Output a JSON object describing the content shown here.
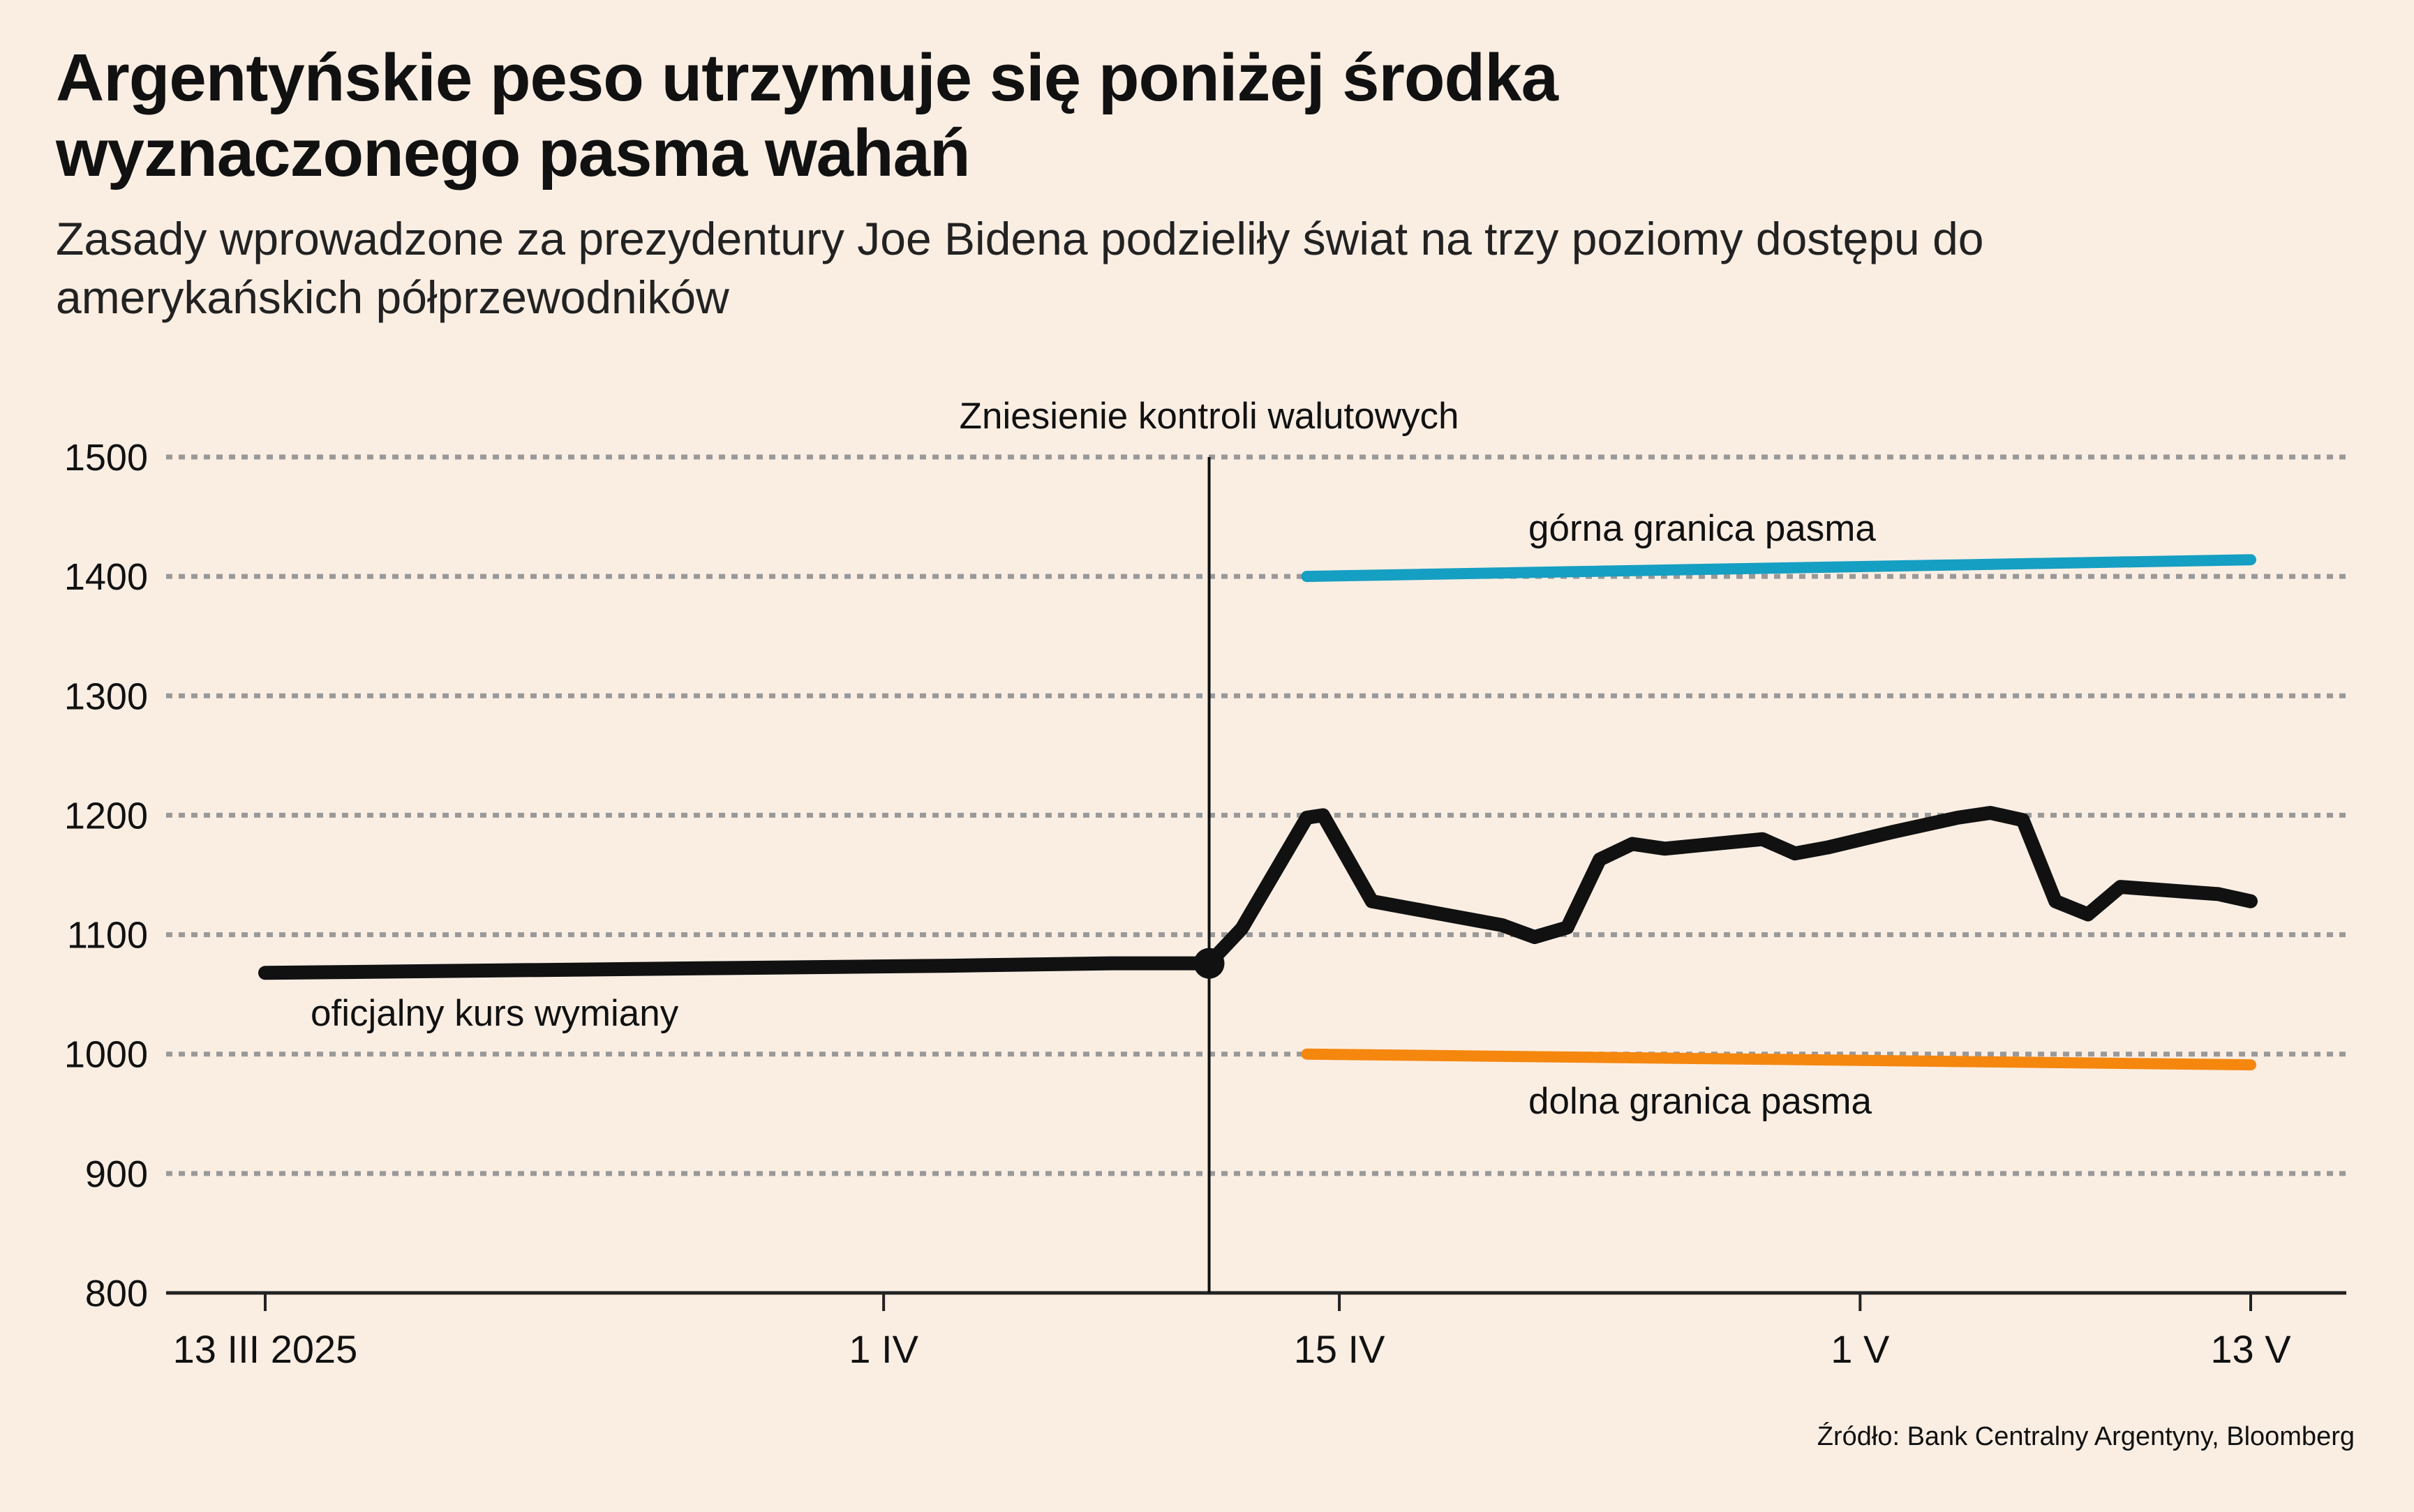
{
  "title": "Argentyńskie peso utrzymuje się poniżej środka wyznaczonego pasma wahań",
  "subtitle": "Zasady wprowadzone za prezydentury Joe Bidena podzieliły świat na trzy poziomy dostępu do amerykańskich półprzewodników",
  "source": "Źródło: Bank Centralny Argentyny, Bloomberg",
  "colors": {
    "background": "#faeee3",
    "official_rate": "#111111",
    "upper_band": "#159fc2",
    "lower_band": "#f5870f",
    "grid": "#999999"
  },
  "chart_data": {
    "type": "line",
    "ylim": [
      800,
      1500
    ],
    "yticks": [
      800,
      900,
      1000,
      1100,
      1200,
      1300,
      1400,
      1500
    ],
    "xlim": [
      "2025-03-13",
      "2025-05-13"
    ],
    "xticks": [
      {
        "date": "2025-03-13",
        "label": "13 III 2025"
      },
      {
        "date": "2025-04-01",
        "label": "1 IV"
      },
      {
        "date": "2025-04-15",
        "label": "15 IV"
      },
      {
        "date": "2025-05-01",
        "label": "1 V"
      },
      {
        "date": "2025-05-13",
        "label": "13 V"
      }
    ],
    "grid": "horizontal dotted",
    "series": [
      {
        "name": "oficjalny kurs wymiany",
        "points": [
          [
            "2025-03-13",
            1068
          ],
          [
            "2025-03-20",
            1070
          ],
          [
            "2025-03-27",
            1072
          ],
          [
            "2025-04-03",
            1074
          ],
          [
            "2025-04-08",
            1076
          ],
          [
            "2025-04-11",
            1076
          ]
        ]
      },
      {
        "points": [
          [
            "2025-04-11",
            1076
          ],
          [
            "2025-04-12",
            1105
          ],
          [
            "2025-04-14",
            1198
          ],
          [
            "2025-04-14T12:00",
            1200
          ],
          [
            "2025-04-16",
            1128
          ],
          [
            "2025-04-18",
            1118
          ],
          [
            "2025-04-20",
            1108
          ],
          [
            "2025-04-21",
            1098
          ],
          [
            "2025-04-22",
            1106
          ],
          [
            "2025-04-23",
            1163
          ],
          [
            "2025-04-24",
            1176
          ],
          [
            "2025-04-25",
            1172
          ],
          [
            "2025-04-28",
            1180
          ],
          [
            "2025-04-29",
            1168
          ],
          [
            "2025-04-30",
            1173
          ],
          [
            "2025-05-02",
            1186
          ],
          [
            "2025-05-04",
            1198
          ],
          [
            "2025-05-05",
            1202
          ],
          [
            "2025-05-06",
            1196
          ],
          [
            "2025-05-07",
            1128
          ],
          [
            "2025-05-08",
            1117
          ],
          [
            "2025-05-09",
            1140
          ],
          [
            "2025-05-11",
            1136
          ],
          [
            "2025-05-12",
            1134
          ],
          [
            "2025-05-13",
            1128
          ]
        ]
      },
      {
        "name": "górna granica pasma",
        "points": [
          [
            "2025-04-14",
            1400
          ],
          [
            "2025-05-13",
            1414
          ]
        ]
      },
      {
        "name": "dolna granica pasma",
        "points": [
          [
            "2025-04-14",
            1000
          ],
          [
            "2025-05-13",
            991
          ]
        ]
      }
    ],
    "annotations": [
      {
        "date": "2025-04-11",
        "text": "Zniesienie kontroli walutowych",
        "marker_value": 1076
      }
    ]
  }
}
